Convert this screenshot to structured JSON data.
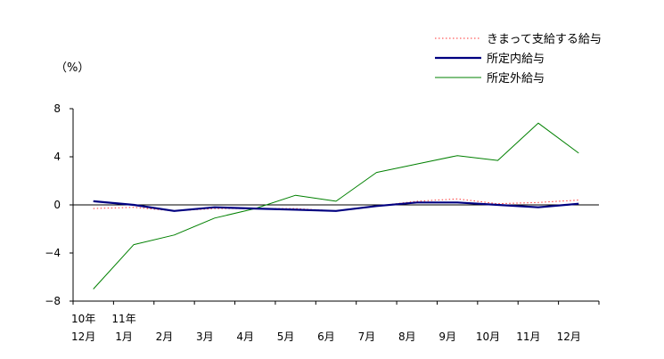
{
  "chart_data": {
    "type": "line",
    "ylabel": "（%）",
    "ylim": [
      -8,
      8
    ],
    "yticks": [
      8,
      4,
      0,
      -4,
      -8
    ],
    "yticklabels": [
      "8",
      "4",
      "0",
      "−4",
      "−8"
    ],
    "categories": [
      "10年\n12月",
      "11年\n1月",
      "2月",
      "3月",
      "4月",
      "5月",
      "6月",
      "7月",
      "8月",
      "9月",
      "10月",
      "11月",
      "12月"
    ],
    "category_lines": [
      [
        "10年",
        "12月"
      ],
      [
        "11年",
        "1月"
      ],
      [
        "",
        "2月"
      ],
      [
        "",
        "3月"
      ],
      [
        "",
        "4月"
      ],
      [
        "",
        "5月"
      ],
      [
        "",
        "6月"
      ],
      [
        "",
        "7月"
      ],
      [
        "",
        "8月"
      ],
      [
        "",
        "9月"
      ],
      [
        "",
        "10月"
      ],
      [
        "",
        "11月"
      ],
      [
        "",
        "12月"
      ]
    ],
    "legend_position": "top-right",
    "series": [
      {
        "name": "きまって支給する給与",
        "color": "#ff3333",
        "style": "dotted",
        "values": [
          -0.3,
          -0.2,
          -0.5,
          -0.3,
          -0.3,
          -0.3,
          -0.5,
          -0.1,
          0.3,
          0.5,
          0.1,
          0.2,
          0.4
        ]
      },
      {
        "name": "所定内給与",
        "color": "#000080",
        "style": "solid-thick",
        "values": [
          0.3,
          0.0,
          -0.5,
          -0.2,
          -0.3,
          -0.4,
          -0.5,
          -0.1,
          0.2,
          0.2,
          0.0,
          -0.2,
          0.1
        ]
      },
      {
        "name": "所定外給与",
        "color": "#008000",
        "style": "solid",
        "values": [
          -7.0,
          -3.3,
          -2.5,
          -1.1,
          -0.3,
          0.8,
          0.3,
          2.7,
          3.4,
          4.1,
          3.7,
          6.8,
          4.3
        ]
      }
    ]
  }
}
